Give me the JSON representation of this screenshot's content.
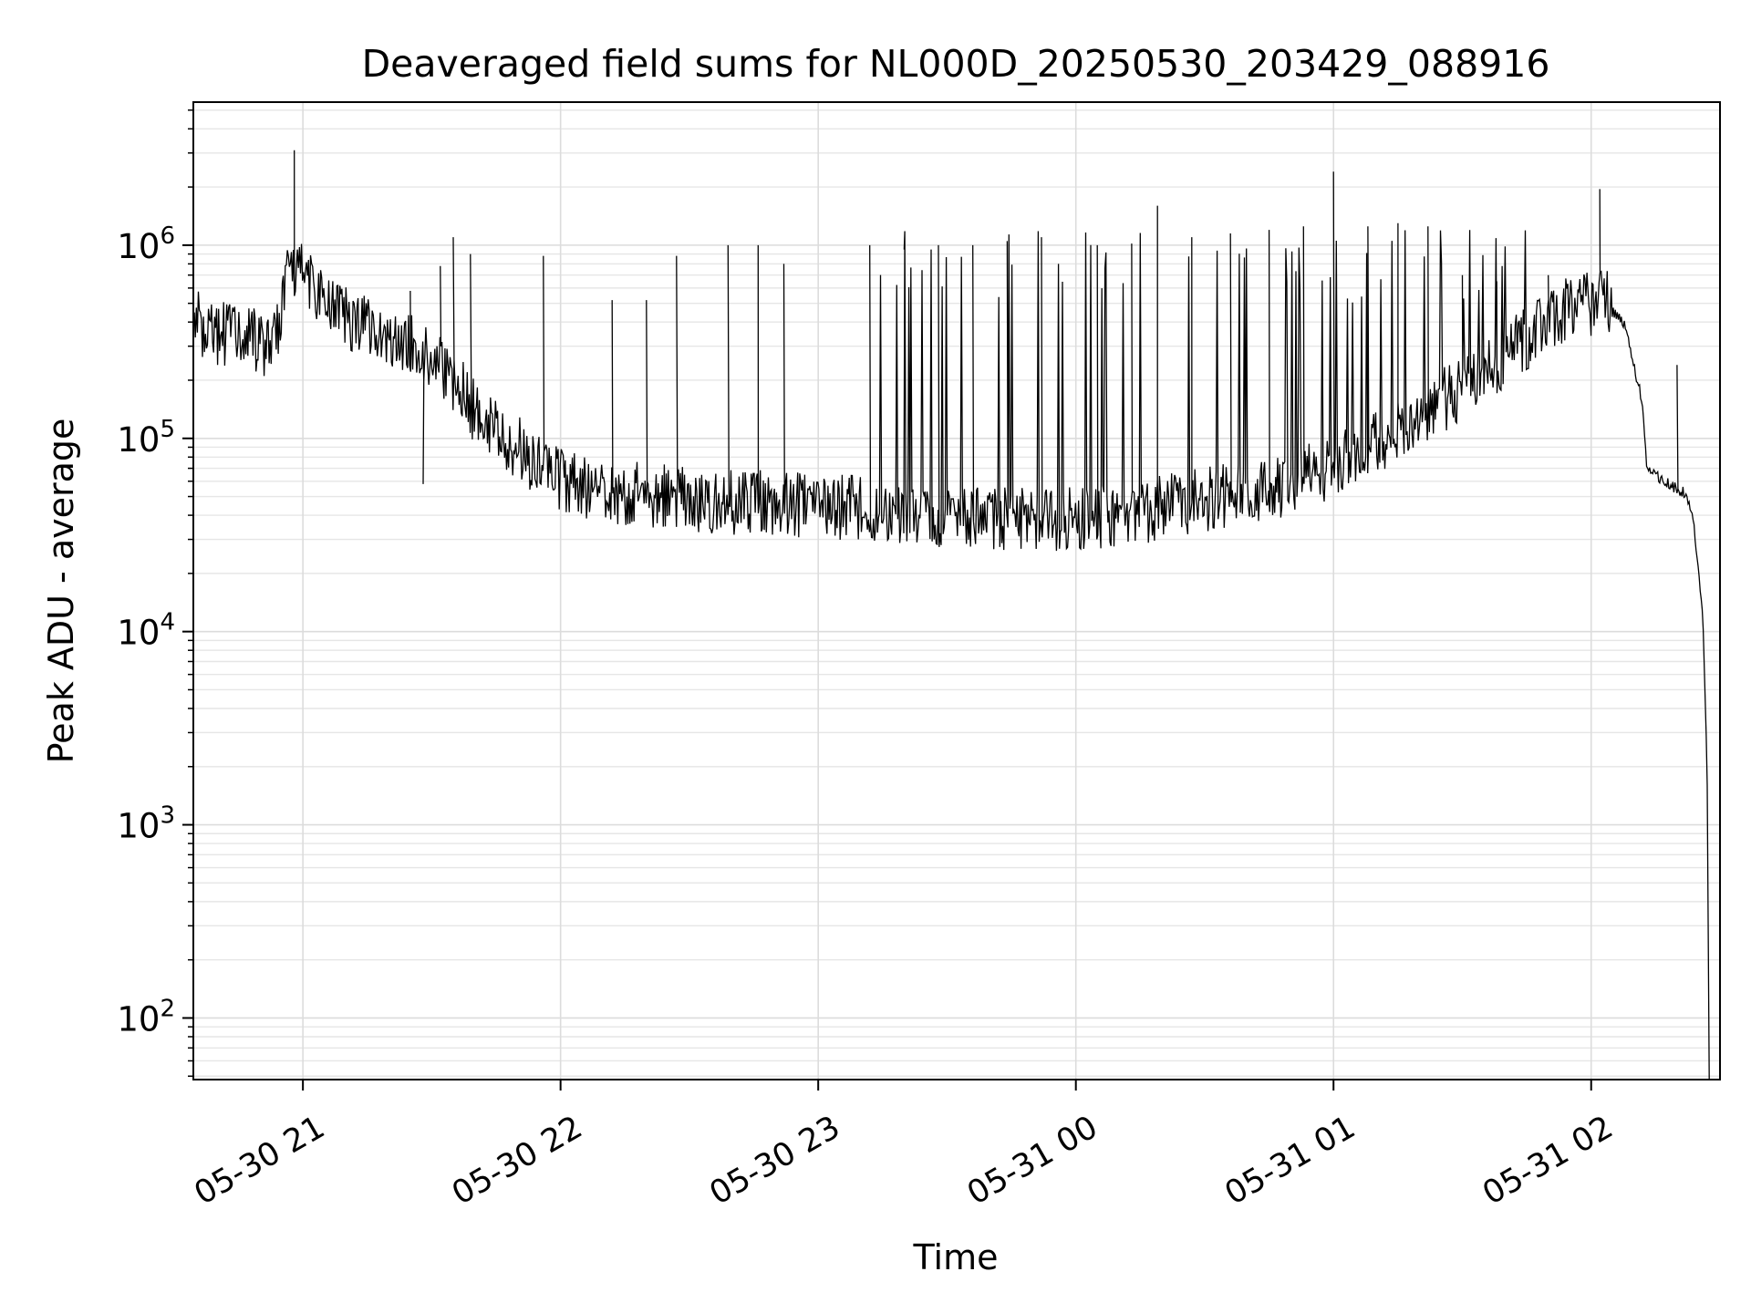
{
  "chart_data": {
    "type": "line",
    "title": "Deaveraged field sums for NL000D_20250530_203429_088916",
    "xlabel": "Time",
    "ylabel": "Peak ADU - average",
    "xlim": [
      "2025-05-30 20:34:29",
      "2025-05-31 02:30:00"
    ],
    "ylim": [
      48,
      5500000
    ],
    "yscale": "log",
    "grid": true,
    "x_ticks": [
      {
        "value": "2025-05-30 21:00",
        "label": "05-30 21"
      },
      {
        "value": "2025-05-30 22:00",
        "label": "05-30 22"
      },
      {
        "value": "2025-05-30 23:00",
        "label": "05-30 23"
      },
      {
        "value": "2025-05-31 00:00",
        "label": "05-31 00"
      },
      {
        "value": "2025-05-31 01:00",
        "label": "05-31 01"
      },
      {
        "value": "2025-05-31 02:00",
        "label": "05-31 02"
      }
    ],
    "y_ticks": [
      {
        "value": 100,
        "base": "10",
        "exp": "2"
      },
      {
        "value": 1000,
        "base": "10",
        "exp": "3"
      },
      {
        "value": 10000,
        "base": "10",
        "exp": "4"
      },
      {
        "value": 100000,
        "base": "10",
        "exp": "5"
      },
      {
        "value": 1000000,
        "base": "10",
        "exp": "6"
      }
    ],
    "series": [
      {
        "color": "#000000",
        "baseline": [
          [
            "2025-05-30 20:34:29",
            420000
          ],
          [
            "2025-05-30 20:40",
            330000
          ],
          [
            "2025-05-30 20:45",
            380000
          ],
          [
            "2025-05-30 20:50",
            300000
          ],
          [
            "2025-05-30 20:53",
            280000
          ],
          [
            "2025-05-30 20:55",
            500000
          ],
          [
            "2025-05-30 20:57",
            750000
          ],
          [
            "2025-05-30 21:00",
            800000
          ],
          [
            "2025-05-30 21:05",
            500000
          ],
          [
            "2025-05-30 21:15",
            380000
          ],
          [
            "2025-05-30 21:25",
            300000
          ],
          [
            "2025-05-30 21:30",
            250000
          ],
          [
            "2025-05-30 21:35",
            200000
          ],
          [
            "2025-05-30 21:40",
            140000
          ],
          [
            "2025-05-30 21:45",
            110000
          ],
          [
            "2025-05-30 21:50",
            90000
          ],
          [
            "2025-05-30 22:00",
            60000
          ],
          [
            "2025-05-30 22:15",
            52000
          ],
          [
            "2025-05-30 22:30",
            48000
          ],
          [
            "2025-05-30 23:00",
            45000
          ],
          [
            "2025-05-30 23:30",
            40000
          ],
          [
            "2025-05-30 23:50",
            38000
          ],
          [
            "2025-05-31 00:10",
            40000
          ],
          [
            "2025-05-31 00:30",
            48000
          ],
          [
            "2025-05-31 00:50",
            58000
          ],
          [
            "2025-05-31 01:05",
            80000
          ],
          [
            "2025-05-31 01:20",
            130000
          ],
          [
            "2025-05-31 01:35",
            220000
          ],
          [
            "2025-05-31 01:45",
            330000
          ],
          [
            "2025-05-31 01:55",
            470000
          ],
          [
            "2025-05-31 02:03",
            520000
          ],
          [
            "2025-05-31 02:08",
            380000
          ],
          [
            "2025-05-31 02:12",
            150000
          ],
          [
            "2025-05-31 02:13",
            70000
          ],
          [
            "2025-05-31 02:18",
            58000
          ],
          [
            "2025-05-31 02:22",
            52000
          ],
          [
            "2025-05-31 02:24",
            35000
          ],
          [
            "2025-05-31 02:26",
            12000
          ],
          [
            "2025-05-31 02:27",
            2000
          ],
          [
            "2025-05-31 02:27:30",
            48
          ]
        ],
        "spikes": [
          [
            "2025-05-30 20:58",
            3100000
          ],
          [
            "2025-05-30 21:25",
            580000
          ],
          [
            "2025-05-30 21:28",
            58000
          ],
          [
            "2025-05-30 21:32",
            780000
          ],
          [
            "2025-05-30 21:35",
            1100000
          ],
          [
            "2025-05-30 21:39",
            900000
          ],
          [
            "2025-05-30 21:56",
            880000
          ],
          [
            "2025-05-30 22:12",
            520000
          ],
          [
            "2025-05-30 22:20",
            520000
          ],
          [
            "2025-05-30 22:27",
            880000
          ],
          [
            "2025-05-30 22:39",
            1000000
          ],
          [
            "2025-05-30 22:46",
            1000000
          ],
          [
            "2025-05-30 22:52",
            800000
          ],
          [
            "2025-05-30 23:12",
            1000000
          ],
          [
            "2025-05-30 23:20",
            950000
          ],
          [
            "2025-05-30 23:28",
            1000000
          ],
          [
            "2025-05-30 23:36",
            1000000
          ],
          [
            "2025-05-30 23:44",
            1050000
          ],
          [
            "2025-05-30 23:52",
            1100000
          ],
          [
            "2025-05-31 00:05",
            1000000
          ],
          [
            "2025-05-31 00:13",
            1020000
          ],
          [
            "2025-05-31 00:19",
            1600000
          ],
          [
            "2025-05-31 00:27",
            1100000
          ],
          [
            "2025-05-31 00:36",
            1150000
          ],
          [
            "2025-05-31 00:45",
            1200000
          ],
          [
            "2025-05-31 00:53",
            1250000
          ],
          [
            "2025-05-31 01:00",
            2400000
          ],
          [
            "2025-05-31 01:08",
            1250000
          ],
          [
            "2025-05-31 01:15",
            1300000
          ],
          [
            "2025-05-31 01:22",
            1250000
          ],
          [
            "2025-05-31 01:30",
            700000
          ],
          [
            "2025-05-31 01:38",
            650000
          ],
          [
            "2025-05-31 01:50",
            700000
          ],
          [
            "2025-05-31 02:02",
            1950000
          ],
          [
            "2025-05-31 02:20",
            240000
          ]
        ]
      }
    ]
  }
}
